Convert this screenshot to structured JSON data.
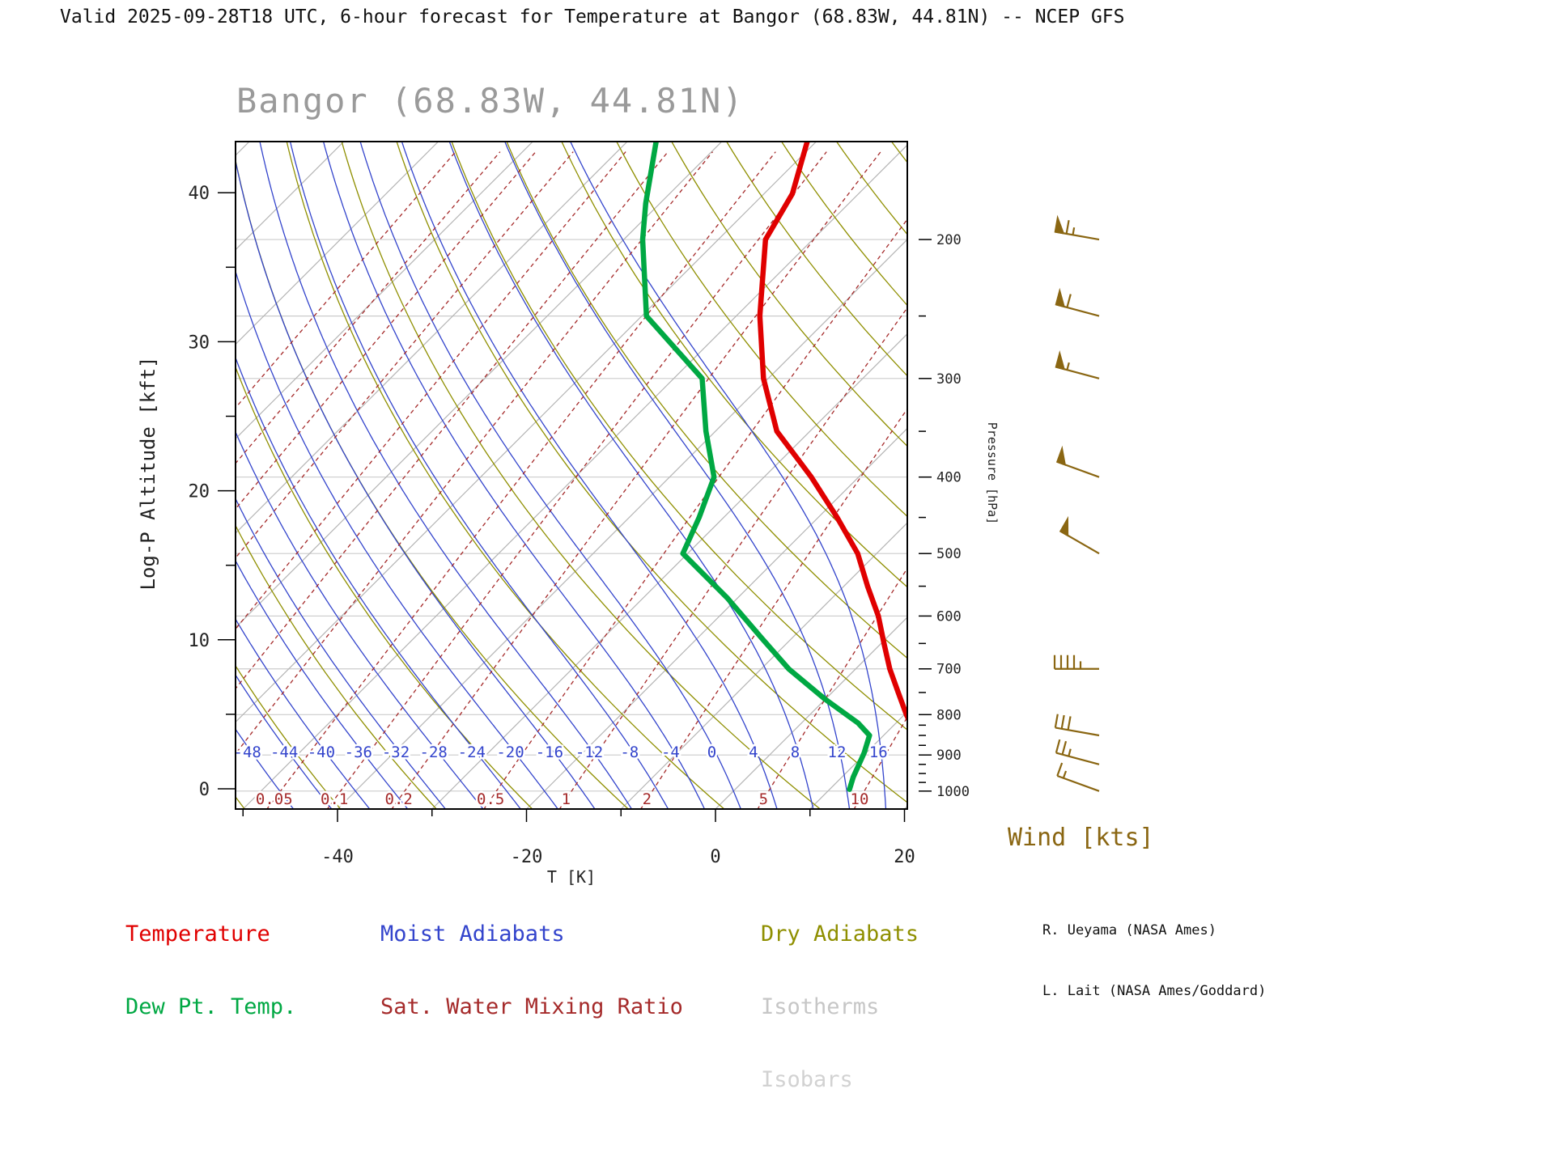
{
  "header": {
    "title": "Valid 2025-09-28T18 UTC, 6-hour forecast for Temperature at Bangor (68.83W, 44.81N) -- NCEP GFS"
  },
  "chart_data": {
    "type": "skewt_logp_sounding",
    "title": "Bangor (68.83W, 44.81N)",
    "station": "Bangor",
    "longitude": "68.83W",
    "latitude": "44.81N",
    "model": "NCEP GFS",
    "valid_time": "2025-09-28T18 UTC",
    "forecast": "6-hour",
    "parameter": "Temperature",
    "axes": {
      "x": {
        "label": "T [K]",
        "ticks": [
          -40,
          -20,
          0,
          20
        ],
        "minor_step": 10,
        "range_c": [
          -50.8,
          20.3
        ]
      },
      "y_left": {
        "label": "Log-P Altitude [kft]",
        "ticks": [
          0,
          10,
          20,
          30,
          40
        ]
      },
      "y_right": {
        "label": "Pressure [hPa]",
        "ticks": [
          200,
          300,
          400,
          500,
          600,
          700,
          800,
          900,
          1000
        ],
        "range_hpa": [
          150,
          1055
        ]
      }
    },
    "isobars": [
      200,
      250,
      300,
      400,
      500,
      600,
      700,
      800,
      900,
      1000
    ],
    "isotherm_range": [
      -120,
      40,
      10
    ],
    "dry_adiabat_theta_range": [
      220,
      440,
      10
    ],
    "moist_adiabat_labels": [
      -48,
      -44,
      -40,
      -36,
      -32,
      -28,
      -24,
      -20,
      -16,
      -12,
      -8,
      -4,
      0,
      4,
      8,
      12,
      16
    ],
    "mixing_ratio_labels": [
      0.05,
      0.1,
      0.2,
      0.5,
      1,
      2,
      5,
      10
    ],
    "mixing_ratio_lines": [
      0.0002,
      0.0005,
      0.001,
      0.002,
      0.005,
      0.01,
      0.02,
      0.05,
      0.1,
      0.2,
      0.5,
      1,
      2,
      5,
      10,
      20
    ],
    "temperature_profile": [
      [
        150,
        -61
      ],
      [
        175,
        -57
      ],
      [
        200,
        -55
      ],
      [
        250,
        -47.5
      ],
      [
        300,
        -40.5
      ],
      [
        350,
        -33.5
      ],
      [
        400,
        -25
      ],
      [
        450,
        -18
      ],
      [
        500,
        -12
      ],
      [
        550,
        -7.5
      ],
      [
        600,
        -3.2
      ],
      [
        650,
        0.3
      ],
      [
        700,
        3.6
      ],
      [
        750,
        7
      ],
      [
        800,
        10.2
      ],
      [
        850,
        13.5
      ],
      [
        925,
        17
      ],
      [
        1000,
        20
      ]
    ],
    "dewpoint_profile": [
      [
        150,
        -77
      ],
      [
        180,
        -71.5
      ],
      [
        200,
        -68
      ],
      [
        250,
        -59.5
      ],
      [
        300,
        -47
      ],
      [
        350,
        -41
      ],
      [
        400,
        -35.3
      ],
      [
        450,
        -32.6
      ],
      [
        500,
        -30.5
      ],
      [
        570,
        -21
      ],
      [
        640,
        -13.2
      ],
      [
        700,
        -7.1
      ],
      [
        765,
        0
      ],
      [
        820,
        6
      ],
      [
        850,
        8.5
      ],
      [
        895,
        9.8
      ],
      [
        960,
        11.2
      ],
      [
        995,
        12.1
      ]
    ],
    "wind_barbs": [
      {
        "p": 200,
        "speed_kts": 65,
        "dir_deg": 280
      },
      {
        "p": 250,
        "speed_kts": 60,
        "dir_deg": 285
      },
      {
        "p": 300,
        "speed_kts": 55,
        "dir_deg": 285
      },
      {
        "p": 400,
        "speed_kts": 50,
        "dir_deg": 290
      },
      {
        "p": 500,
        "speed_kts": 50,
        "dir_deg": 300
      },
      {
        "p": 700,
        "speed_kts": 45,
        "dir_deg": 270
      },
      {
        "p": 850,
        "speed_kts": 30,
        "dir_deg": 280
      },
      {
        "p": 925,
        "speed_kts": 25,
        "dir_deg": 285
      },
      {
        "p": 1000,
        "speed_kts": 15,
        "dir_deg": 290
      }
    ],
    "colors": {
      "temperature": "#e00000",
      "dewpoint": "#00a843",
      "moist_adiabat": "#3344cc",
      "dry_adiabat": "#8f8f00",
      "mixing_ratio": "#a52a2a",
      "isotherm": "#b5b5b5",
      "isobar": "#cccccc",
      "wind": "#8a6612",
      "title": "#9a9a9a"
    }
  },
  "wind": {
    "title": "Wind [kts]"
  },
  "legend": {
    "col1": [
      {
        "label": "Temperature",
        "color": "#e00000"
      },
      {
        "label": "Dew Pt. Temp.",
        "color": "#00a843"
      }
    ],
    "col2": [
      {
        "label": "Moist Adiabats",
        "color": "#3344cc"
      },
      {
        "label": "Sat. Water Mixing Ratio",
        "color": "#a52a2a"
      }
    ],
    "col3": [
      {
        "label": "Dry Adiabats",
        "color": "#8f8f00"
      },
      {
        "label": "Isotherms",
        "color": "#c6c6c6"
      },
      {
        "label": "Isobars",
        "color": "#d2d2d2"
      }
    ]
  },
  "credits": [
    "R. Ueyama (NASA Ames)",
    "L. Lait (NASA Ames/Goddard)"
  ]
}
